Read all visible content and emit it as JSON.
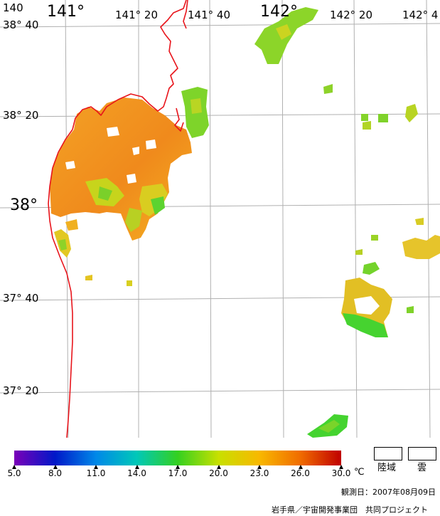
{
  "map": {
    "lon_labels": [
      "140",
      "141°",
      "141° 20",
      "141° 40",
      "142°",
      "142° 20",
      "142° 4"
    ],
    "lat_labels": [
      "38° 40",
      "38° 20",
      "38°",
      "37° 40",
      "37° 20"
    ],
    "colors": {
      "coast": "#e8141b",
      "grid": "#b0b0b0",
      "sst_low": "#55d62e",
      "sst_mid": "#d8d11e",
      "sst_high": "#f08a1c"
    }
  },
  "colorbar": {
    "stops": [
      "#7a00b8",
      "#0018c8",
      "#0088e8",
      "#00c8b8",
      "#34d020",
      "#c8e000",
      "#f8b800",
      "#f06c00",
      "#c00000"
    ],
    "ticks": [
      "5.0",
      "8.0",
      "11.0",
      "14.0",
      "17.0",
      "20.0",
      "23.0",
      "26.0",
      "30.0"
    ],
    "unit": "℃"
  },
  "legend": {
    "land": "陸域",
    "cloud": "雲"
  },
  "observation": "観測日：2007年08月09日",
  "credit": "岩手県／宇宙開発事業団　共同プロジェクト"
}
